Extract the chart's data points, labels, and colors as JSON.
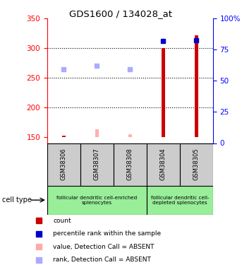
{
  "title": "GDS1600 / 134028_at",
  "samples": [
    "GSM38306",
    "GSM38307",
    "GSM38308",
    "GSM38304",
    "GSM38305"
  ],
  "x_positions": [
    0,
    1,
    2,
    3,
    4
  ],
  "count_values": [
    152,
    152,
    152,
    300,
    322
  ],
  "value_absent_bar": [
    null,
    163,
    155,
    null,
    null
  ],
  "rank_values": [
    265,
    270,
    265,
    312,
    313
  ],
  "rank_absent": [
    true,
    true,
    true,
    false,
    false
  ],
  "ylim_left": [
    140,
    350
  ],
  "ylim_right": [
    0,
    100
  ],
  "yticks_left": [
    150,
    200,
    250,
    300,
    350
  ],
  "yticks_right": [
    0,
    25,
    50,
    75,
    100
  ],
  "ytick_labels_right": [
    "0",
    "25",
    "50",
    "75",
    "100%"
  ],
  "hlines": [
    200,
    250,
    300
  ],
  "group1_label": "follicular dendritic cell-enriched\nsplenocytes",
  "group2_label": "follicular dendritic cell-\ndepleted splenocytes",
  "cell_type_label": "cell type",
  "legend_items": [
    {
      "label": "count",
      "color": "#cc0000"
    },
    {
      "label": "percentile rank within the sample",
      "color": "#0000cc"
    },
    {
      "label": "value, Detection Call = ABSENT",
      "color": "#ffaaaa"
    },
    {
      "label": "rank, Detection Call = ABSENT",
      "color": "#aaaaff"
    }
  ],
  "bar_color_present": "#cc0000",
  "bar_color_absent_value": "#ffb0b0",
  "dot_color_present": "#0000cc",
  "dot_color_absent": "#aaaaff",
  "sample_box_color": "#cccccc",
  "group_box_color": "#99ee99",
  "baseline": 150,
  "bar_width": 0.12
}
